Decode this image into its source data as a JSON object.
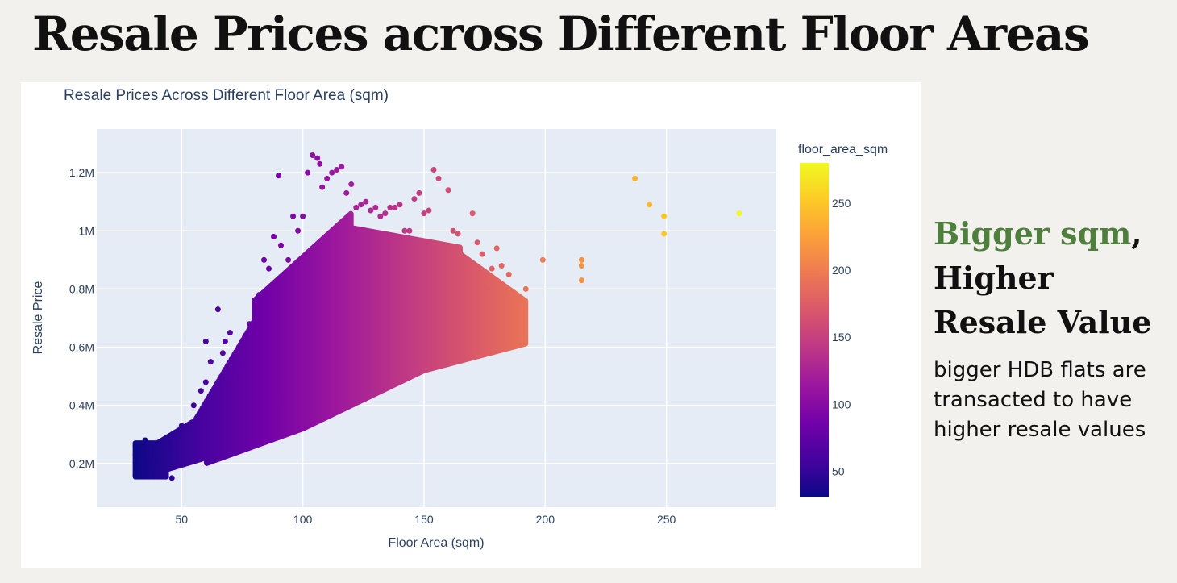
{
  "slide": {
    "title": "Resale Prices across Different Floor Areas",
    "headline_accent": "Bigger sqm",
    "headline_rest": ", Higher Resale Value",
    "body": "bigger HDB flats are transacted to have higher resale values"
  },
  "chart_data": {
    "type": "scatter",
    "title": "Resale Prices Across Different Floor Area (sqm)",
    "xlabel": "Floor Area (sqm)",
    "ylabel": "Resale Price",
    "xlim": [
      15,
      295
    ],
    "ylim": [
      50000,
      1350000
    ],
    "x_ticks": [
      50,
      100,
      150,
      200,
      250
    ],
    "x_tick_labels": [
      "50",
      "100",
      "150",
      "200",
      "250"
    ],
    "y_ticks": [
      200000,
      400000,
      600000,
      800000,
      1000000,
      1200000
    ],
    "y_tick_labels": [
      "0.2M",
      "0.4M",
      "0.6M",
      "0.8M",
      "1M",
      "1.2M"
    ],
    "grid": true,
    "color_by": "floor_area_sqm",
    "colorbar": {
      "title": "floor_area_sqm",
      "range": [
        31,
        280
      ],
      "ticks": [
        50,
        100,
        150,
        200,
        250
      ],
      "tick_labels": [
        "50",
        "100",
        "150",
        "200",
        "250"
      ],
      "colorscale": [
        "#0d0887",
        "#46039f",
        "#7201a8",
        "#9c179e",
        "#bd3786",
        "#d8576b",
        "#ed7953",
        "#fb9f3a",
        "#fdca26",
        "#f0f921"
      ]
    },
    "series": [
      {
        "x": [
          31,
          31,
          31,
          31,
          33,
          35,
          38,
          40,
          42,
          44,
          45,
          46,
          48,
          50,
          52,
          55,
          58,
          60,
          60,
          62,
          65,
          65,
          67,
          68,
          70,
          70,
          73,
          75,
          78,
          80,
          82,
          84,
          86,
          88,
          90,
          91,
          92,
          94,
          96,
          98,
          100,
          102,
          104,
          106,
          107,
          108,
          110,
          112,
          114,
          116,
          118,
          120,
          122,
          124,
          126,
          128,
          130,
          132,
          134,
          136,
          138,
          140,
          142,
          144,
          146,
          148,
          150,
          152,
          154,
          156,
          158,
          160,
          162,
          164,
          166,
          170,
          172,
          174,
          176,
          178,
          180,
          182,
          185,
          188,
          190,
          192,
          199,
          215,
          215,
          215,
          237,
          243,
          249,
          249,
          280
        ],
        "y": [
          160000,
          200000,
          230000,
          260000,
          240000,
          280000,
          190000,
          210000,
          160000,
          270000,
          250000,
          150000,
          300000,
          330000,
          320000,
          400000,
          450000,
          480000,
          620000,
          550000,
          730000,
          300000,
          580000,
          620000,
          500000,
          650000,
          550000,
          610000,
          680000,
          760000,
          780000,
          900000,
          870000,
          980000,
          1190000,
          950000,
          420000,
          900000,
          1050000,
          1000000,
          1050000,
          1200000,
          1260000,
          1250000,
          1230000,
          1150000,
          1180000,
          1200000,
          1210000,
          1220000,
          1130000,
          1160000,
          1080000,
          1090000,
          1100000,
          1070000,
          1080000,
          1050000,
          1060000,
          1080000,
          1080000,
          1090000,
          1000000,
          1000000,
          1110000,
          1130000,
          1060000,
          1070000,
          1210000,
          1180000,
          950000,
          1140000,
          1000000,
          990000,
          890000,
          1060000,
          960000,
          920000,
          800000,
          870000,
          940000,
          880000,
          850000,
          760000,
          760000,
          800000,
          900000,
          900000,
          880000,
          830000,
          1180000,
          1090000,
          1050000,
          990000,
          1060000
        ]
      }
    ]
  }
}
